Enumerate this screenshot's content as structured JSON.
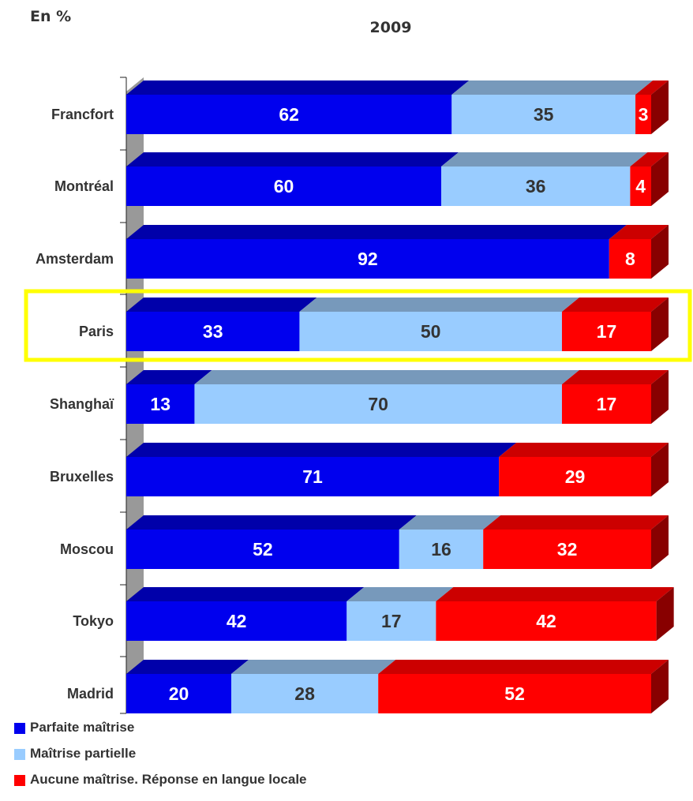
{
  "unit_label": "En %",
  "colors": {
    "parfaite": "#0000ee",
    "parfaite_top": "#0000aa",
    "partielle": "#99ccff",
    "partielle_top": "#7799bb",
    "aucune": "#ff0000",
    "aucune_top": "#cc0000",
    "aucune_side": "#880000",
    "highlight": "#ffff00",
    "wall": "#999999"
  },
  "chart_data": {
    "type": "bar",
    "orientation": "horizontal",
    "stacked": true,
    "title": "2009",
    "categories": [
      "Francfort",
      "Montréal",
      "Amsterdam",
      "Paris",
      "Shanghaï",
      "Bruxelles",
      "Moscou",
      "Tokyo",
      "Madrid"
    ],
    "series": [
      {
        "name": "Parfaite maîtrise",
        "values": [
          62,
          60,
          92,
          33,
          13,
          71,
          52,
          42,
          20
        ]
      },
      {
        "name": "Maîtrise partielle",
        "values": [
          35,
          36,
          0,
          50,
          70,
          0,
          16,
          17,
          28
        ]
      },
      {
        "name": "Aucune maîtrise. Réponse en langue locale",
        "values": [
          3,
          4,
          8,
          17,
          17,
          29,
          32,
          42,
          52
        ]
      }
    ],
    "xlim": [
      0,
      100
    ],
    "highlighted_category": "Paris",
    "legend_position": "bottom-left",
    "grid": false
  }
}
